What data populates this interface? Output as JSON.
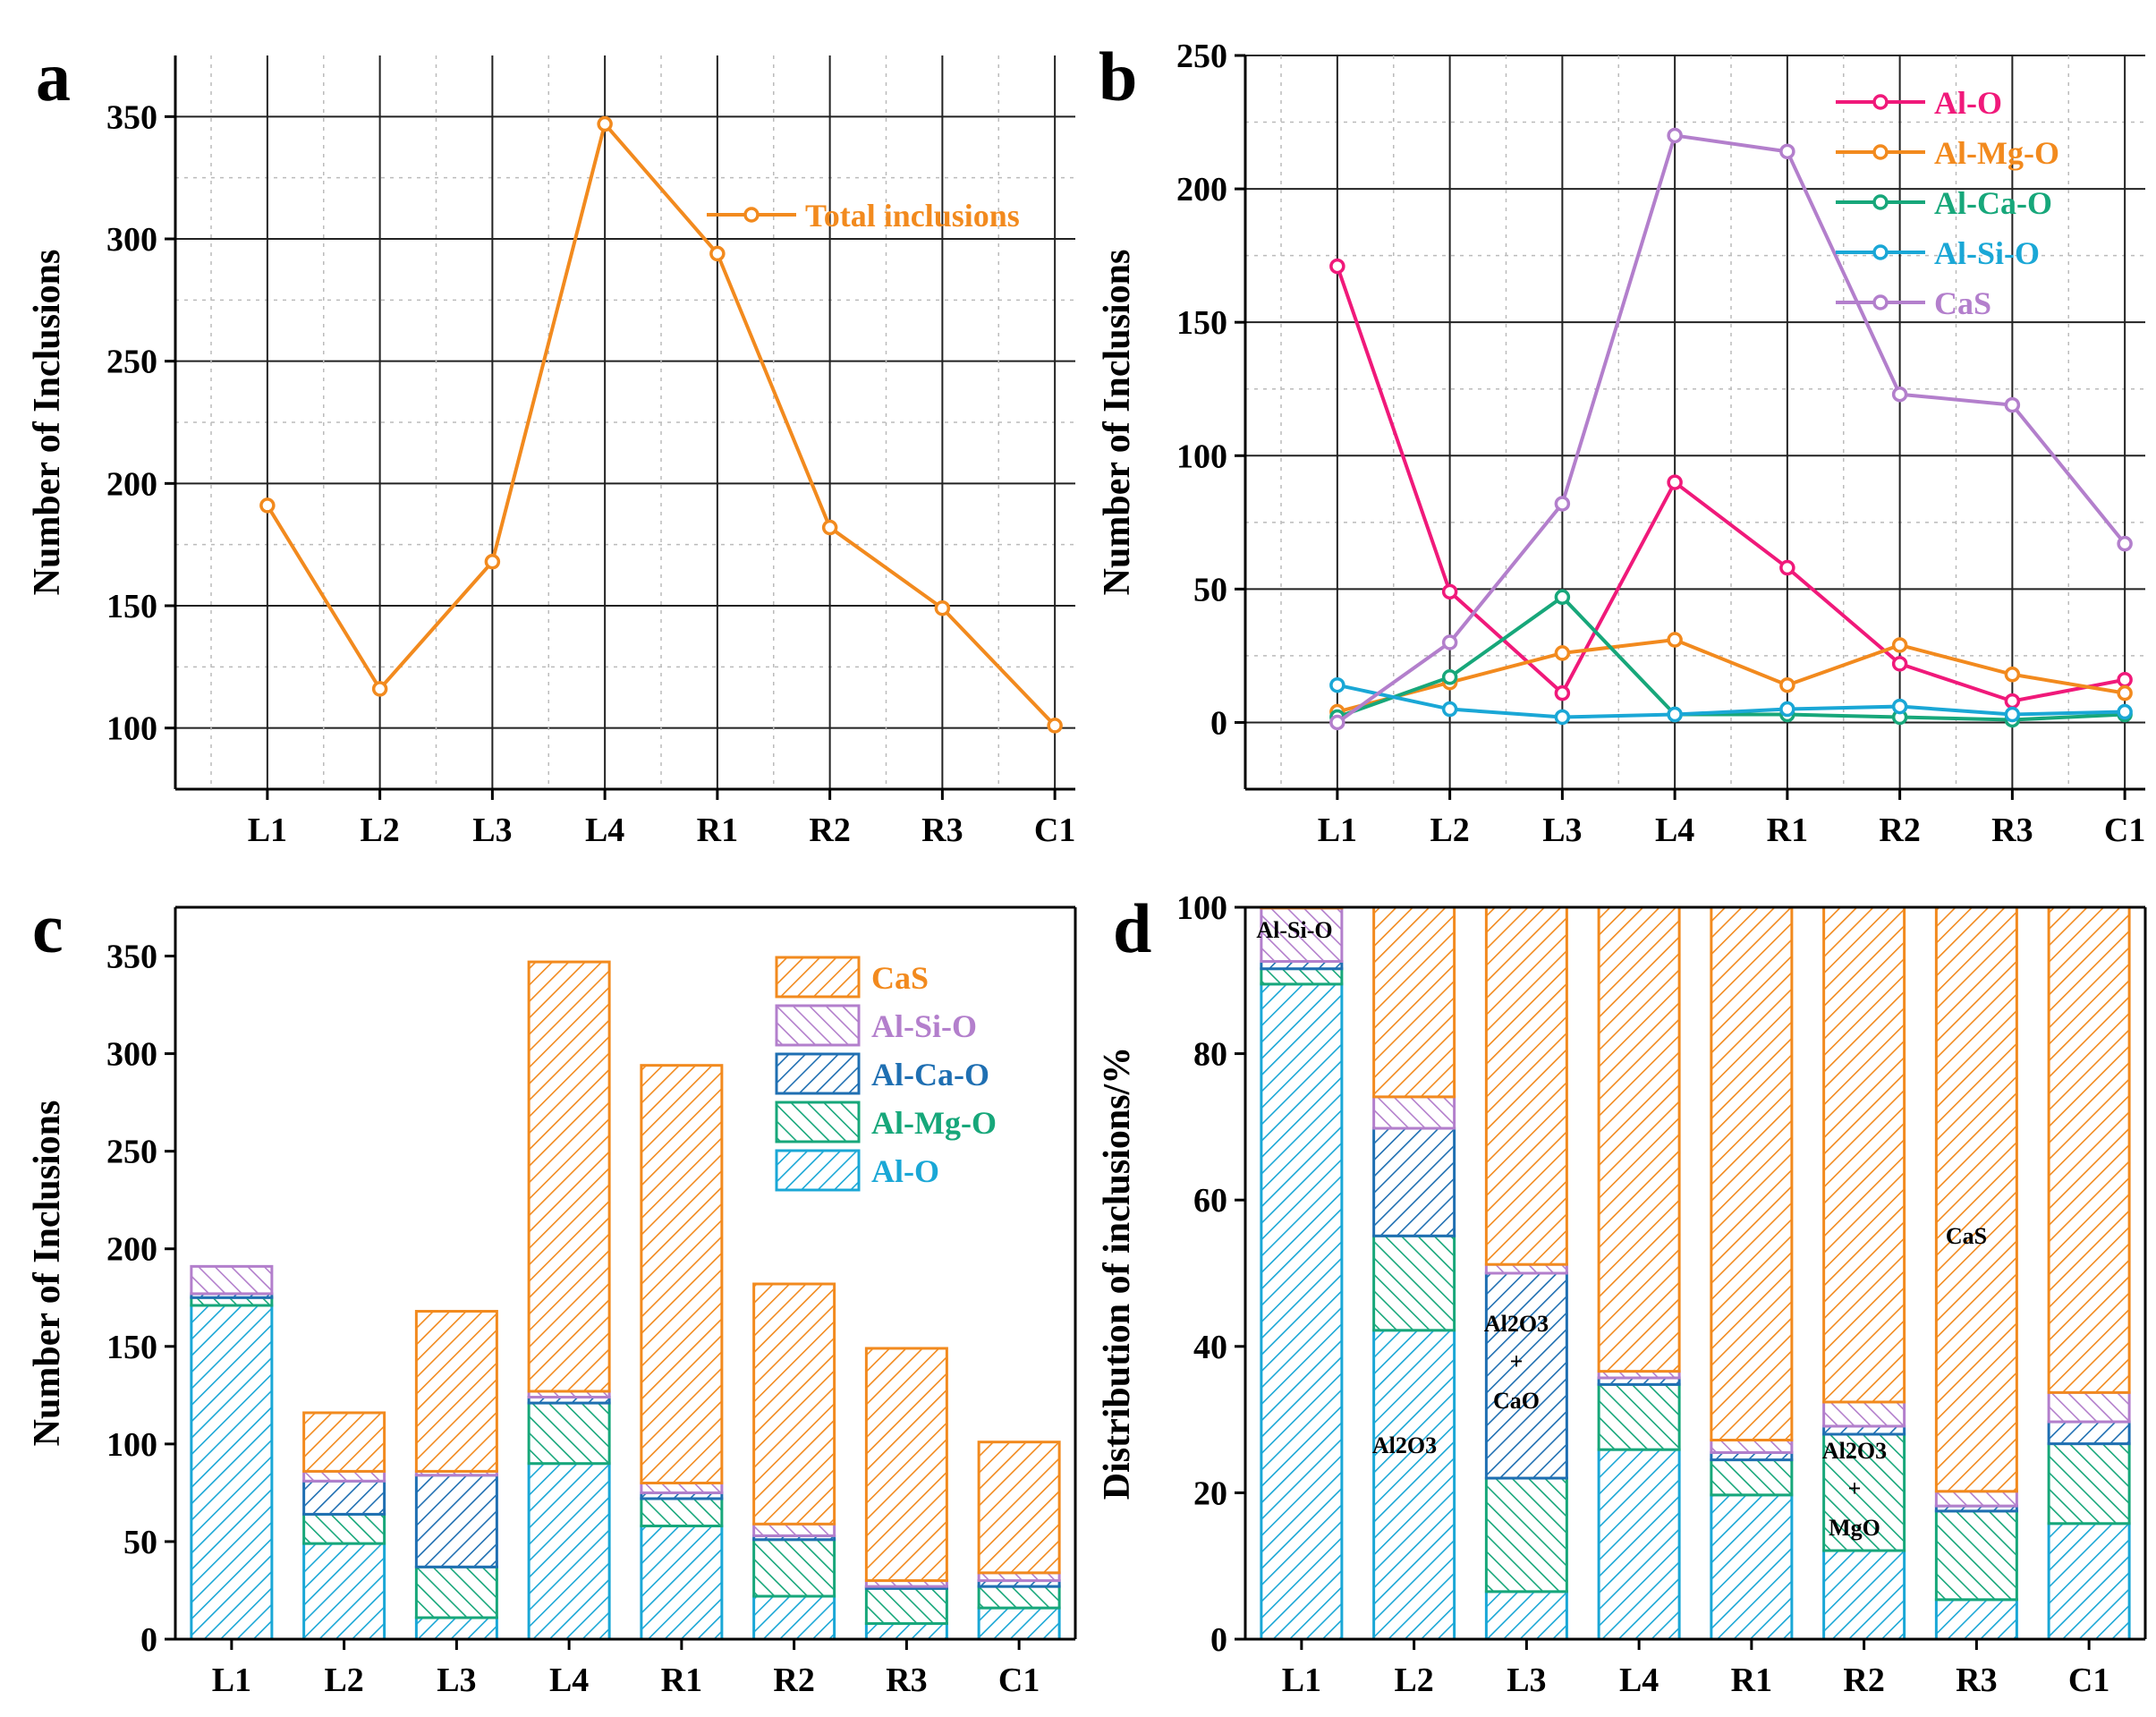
{
  "chart_data": [
    {
      "panel": "a",
      "type": "line",
      "categories": [
        "L1",
        "L2",
        "L3",
        "L4",
        "R1",
        "R2",
        "R3",
        "C1"
      ],
      "ylabel": "Number of Inclusions",
      "xlabel": "",
      "ylim": [
        75,
        375
      ],
      "yticks": [
        100,
        150,
        200,
        250,
        300,
        350
      ],
      "grid": true,
      "legend_position": "top-right",
      "series": [
        {
          "name": "Total inclusions",
          "color": "#F28A1E",
          "values": [
            191,
            116,
            168,
            347,
            294,
            182,
            149,
            101
          ]
        }
      ]
    },
    {
      "panel": "b",
      "type": "line",
      "categories": [
        "L1",
        "L2",
        "L3",
        "L4",
        "R1",
        "R2",
        "R3",
        "C1"
      ],
      "ylabel": "Number of Inclusions",
      "xlabel": "",
      "ylim": [
        -25,
        250
      ],
      "yticks": [
        0,
        50,
        100,
        150,
        200,
        250
      ],
      "grid": true,
      "legend_position": "top-right",
      "series": [
        {
          "name": "Al-O",
          "color": "#F0197A",
          "values": [
            171,
            49,
            11,
            90,
            58,
            22,
            8,
            16
          ]
        },
        {
          "name": "Al-Mg-O",
          "color": "#F28A1E",
          "values": [
            4,
            15,
            26,
            31,
            14,
            29,
            18,
            11
          ]
        },
        {
          "name": "Al-Ca-O",
          "color": "#17A77A",
          "values": [
            2,
            17,
            47,
            3,
            3,
            2,
            1,
            3
          ]
        },
        {
          "name": "Al-Si-O",
          "color": "#1AA7D6",
          "values": [
            14,
            5,
            2,
            3,
            5,
            6,
            3,
            4
          ]
        },
        {
          "name": "CaS",
          "color": "#B37FCC",
          "values": [
            0,
            30,
            82,
            220,
            214,
            123,
            119,
            67
          ]
        }
      ]
    },
    {
      "panel": "c",
      "type": "bar",
      "stacked": true,
      "categories": [
        "L1",
        "L2",
        "L3",
        "L4",
        "R1",
        "R2",
        "R3",
        "C1"
      ],
      "ylabel": "Number of Inclusions",
      "xlabel": "",
      "ylim": [
        0,
        375
      ],
      "yticks": [
        0,
        50,
        100,
        150,
        200,
        250,
        300,
        350
      ],
      "grid": false,
      "legend_position": "top-right",
      "series": [
        {
          "name": "Al-O",
          "color": "#1AA7D6",
          "values": [
            171,
            49,
            11,
            90,
            58,
            22,
            8,
            16
          ]
        },
        {
          "name": "Al-Mg-O",
          "color": "#17A77A",
          "values": [
            4,
            15,
            26,
            31,
            14,
            29,
            18,
            11
          ]
        },
        {
          "name": "Al-Ca-O",
          "color": "#1F6FB2",
          "values": [
            2,
            17,
            47,
            3,
            3,
            2,
            1,
            3
          ]
        },
        {
          "name": "Al-Si-O",
          "color": "#B37FCC",
          "values": [
            14,
            5,
            2,
            3,
            5,
            6,
            3,
            4
          ]
        },
        {
          "name": "CaS",
          "color": "#F28A1E",
          "values": [
            0,
            30,
            82,
            220,
            214,
            123,
            119,
            67
          ]
        }
      ]
    },
    {
      "panel": "d",
      "type": "bar",
      "stacked": true,
      "categories": [
        "L1",
        "L2",
        "L3",
        "L4",
        "R1",
        "R2",
        "R3",
        "C1"
      ],
      "ylabel": "Distribution of inclusions/%",
      "xlabel": "",
      "ylim": [
        0,
        100
      ],
      "yticks": [
        0,
        20,
        40,
        60,
        80,
        100
      ],
      "grid": false,
      "series": [
        {
          "name": "Al-O",
          "color": "#1AA7D6",
          "values": [
            89.5,
            42.2,
            6.5,
            25.9,
            19.7,
            12.1,
            5.4,
            15.8
          ]
        },
        {
          "name": "Al-Mg-O",
          "color": "#17A77A",
          "values": [
            2.1,
            12.9,
            15.5,
            8.9,
            4.8,
            15.9,
            12.1,
            10.9
          ]
        },
        {
          "name": "Al-Ca-O",
          "color": "#1F6FB2",
          "values": [
            1.0,
            14.7,
            28.0,
            0.9,
            1.0,
            1.1,
            0.7,
            3.0
          ]
        },
        {
          "name": "Al-Si-O",
          "color": "#B37FCC",
          "values": [
            7.3,
            4.3,
            1.2,
            0.9,
            1.7,
            3.3,
            2.0,
            4.0
          ]
        },
        {
          "name": "CaS",
          "color": "#F28A1E",
          "values": [
            0.1,
            25.9,
            48.8,
            63.4,
            72.8,
            67.6,
            79.8,
            66.3
          ]
        }
      ]
    }
  ],
  "annotations_d": {
    "alsio": "Al-Si-O",
    "al2o3": "Al2O3",
    "al2o3_cao_top": "Al2O3",
    "plus1": "+",
    "cao": "CaO",
    "al2o3_mgo_top": "Al2O3",
    "plus2": "+",
    "mgo": "MgO",
    "cas": "CaS"
  }
}
